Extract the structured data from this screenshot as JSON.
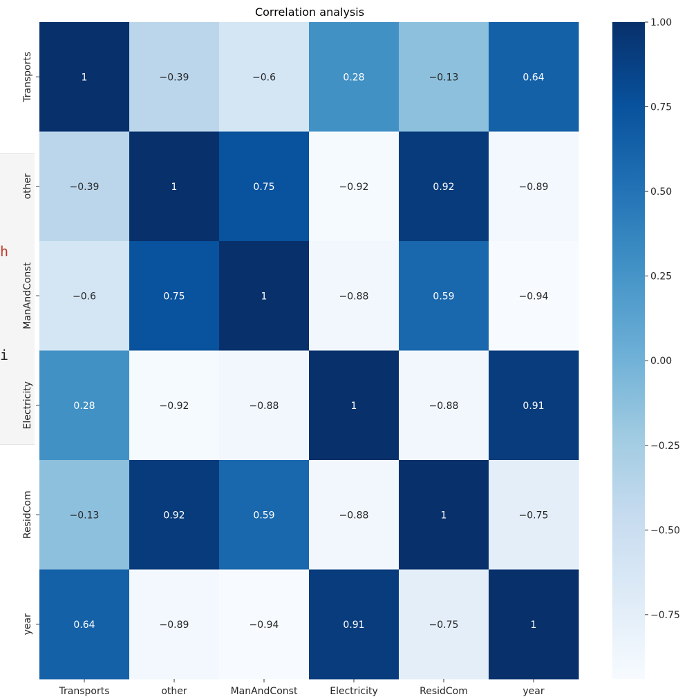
{
  "background": {
    "panel_chars": [
      "h",
      "i"
    ]
  },
  "chart_data": {
    "type": "heatmap",
    "title": "Correlation analysis",
    "rows": [
      "Transports",
      "other",
      "ManAndConst",
      "Electricity",
      "ResidCom",
      "year"
    ],
    "columns": [
      "Transports",
      "other",
      "ManAndConst",
      "Electricity",
      "ResidCom",
      "year"
    ],
    "values": [
      [
        1,
        -0.39,
        -0.6,
        0.28,
        -0.13,
        0.64
      ],
      [
        -0.39,
        1,
        0.75,
        -0.92,
        0.92,
        -0.89
      ],
      [
        -0.6,
        0.75,
        1,
        -0.88,
        0.59,
        -0.94
      ],
      [
        0.28,
        -0.92,
        -0.88,
        1,
        -0.88,
        0.91
      ],
      [
        -0.13,
        0.92,
        0.59,
        -0.88,
        1,
        -0.75
      ],
      [
        0.64,
        -0.89,
        -0.94,
        0.91,
        -0.75,
        1
      ]
    ],
    "colormap": "Blues",
    "colormap_stops": [
      "#f7fbff",
      "#deebf7",
      "#c6dbef",
      "#9ecae1",
      "#6baed6",
      "#4292c6",
      "#2171b5",
      "#08519c",
      "#08306b"
    ],
    "vmin": -0.94,
    "vmax": 1.0,
    "colorbar_ticks": [
      "1.00",
      "0.75",
      "0.50",
      "0.25",
      "0.00",
      "−0.25",
      "−0.50",
      "−0.75"
    ],
    "colorbar_tick_values": [
      1.0,
      0.75,
      0.5,
      0.25,
      0.0,
      -0.25,
      -0.5,
      -0.75
    ],
    "annotations": true
  }
}
